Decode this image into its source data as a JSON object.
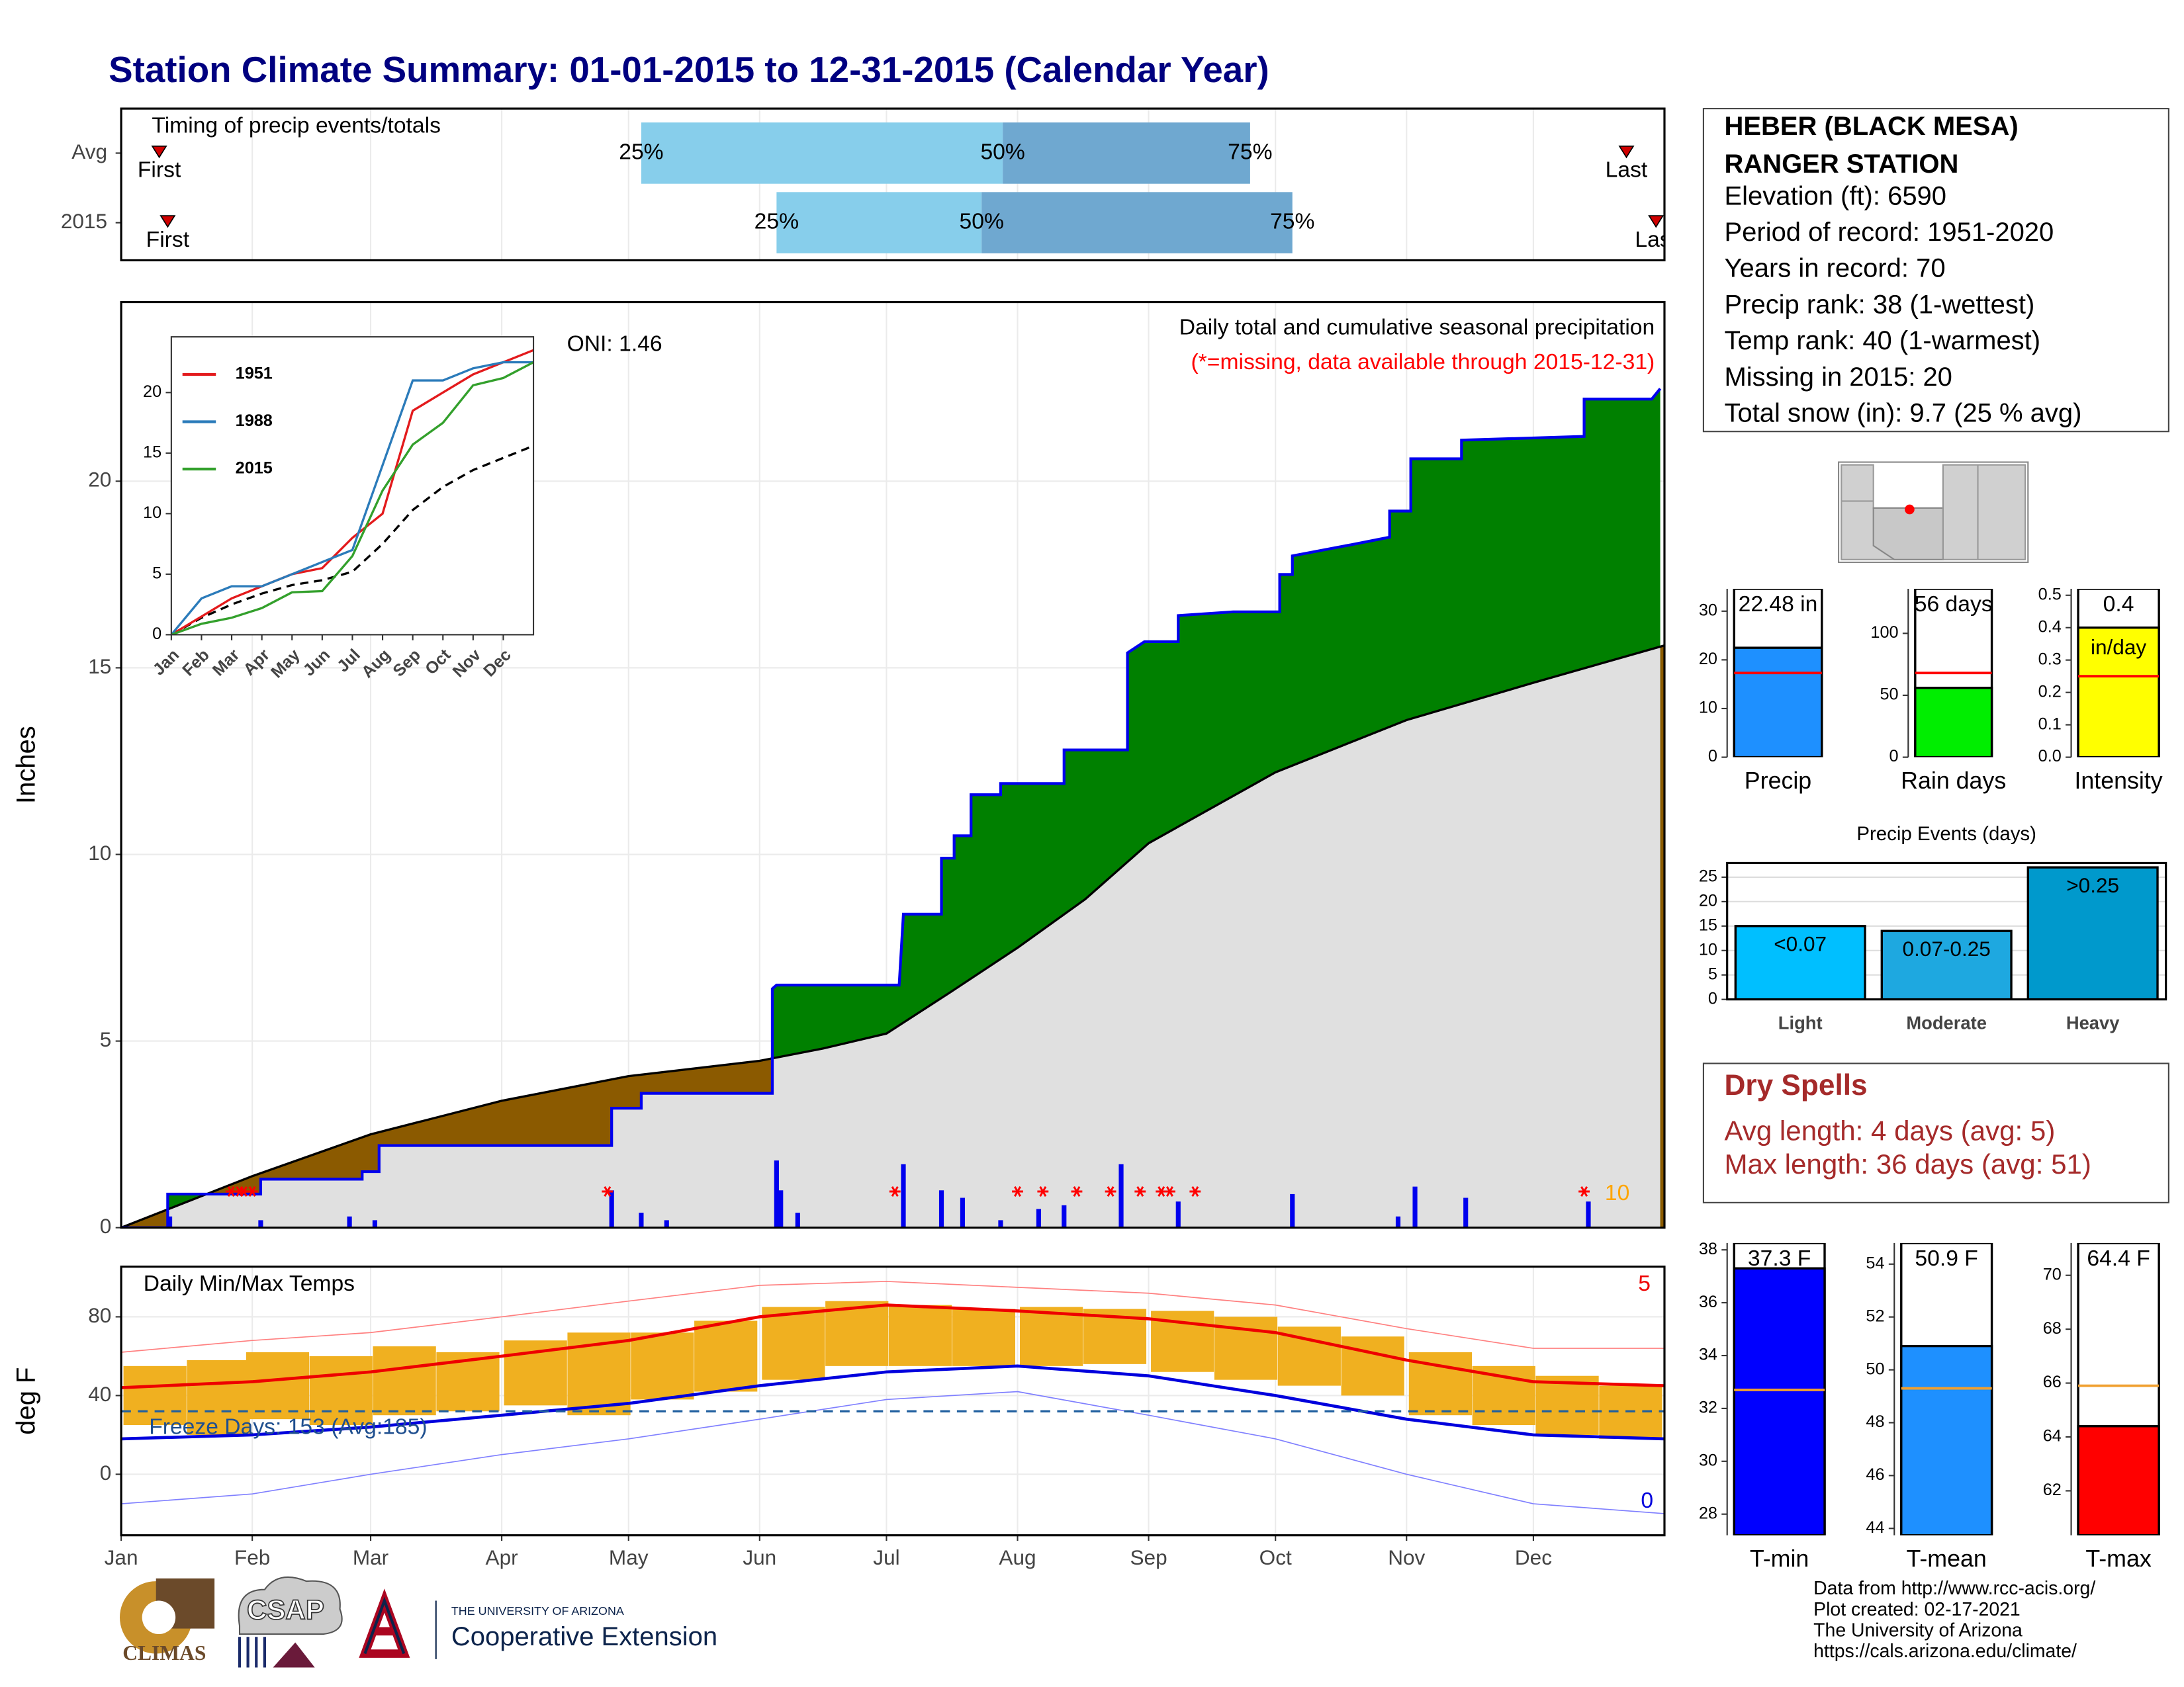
{
  "title": "Station Climate Summary: 01-01-2015 to 12-31-2015 (Calendar Year)",
  "station": {
    "name_lines": [
      "HEBER (BLACK MESA)",
      "RANGER STATION"
    ],
    "details": [
      "Elevation (ft): 6590",
      "Period of record: 1951-2020",
      "Years in record: 70",
      "Precip rank: 38 (1-wettest)",
      "Temp rank: 40 (1-warmest)",
      "Missing in 2015: 20",
      "Total snow (in): 9.7 (25 % avg)"
    ]
  },
  "dry_spells": {
    "title": "Dry Spells",
    "lines": [
      "Avg length: 4 days (avg: 5)",
      "Max length: 36 days (avg: 51)"
    ]
  },
  "footer": {
    "source_lines": [
      "Data from http://www.rcc-acis.org/",
      "Plot created: 02-17-2021",
      "The University of Arizona",
      "https://cals.arizona.edu/climate/"
    ]
  },
  "logos": {
    "climas": "CLIMAS",
    "csap": "CSAP",
    "ua_small": "THE UNIVERSITY OF ARIZONA",
    "extension": "Cooperative Extension"
  },
  "chart_data": [
    {
      "type": "timing",
      "title": "Timing of precip events/totals",
      "xlim": [
        0,
        365
      ],
      "quantile_labels": [
        "25%",
        "50%",
        "75%"
      ],
      "first_label": "First",
      "last_label": "Last",
      "colors": {
        "early": "#87ceeb",
        "late": "#6fa8d0",
        "marker": "#d00000"
      },
      "rows": [
        {
          "label": "Avg",
          "first": 9,
          "q25": 123,
          "q50": 208.5,
          "q75": 267,
          "last": 356
        },
        {
          "label": "2015",
          "first": 11,
          "q25": 155,
          "q50": 203.5,
          "q75": 277,
          "last": 363
        }
      ]
    },
    {
      "type": "area",
      "xlim": [
        0,
        365
      ],
      "ylim": [
        0,
        24.8
      ],
      "yticks": [
        0,
        5,
        10,
        15,
        20
      ],
      "grid": true,
      "y_label": "Inches",
      "oni": "ONI: 1.46",
      "subtitle": "Daily total and cumulative seasonal precipitation",
      "note": "(*=missing, data available through 2015-12-31)",
      "annotation_count": 10,
      "colors": {
        "above": "#008000",
        "below": "#8b5a00",
        "average": "#e0e0e0",
        "line": "#0000ee",
        "daily": "#0000ee",
        "missing": "#ff0000",
        "annotation": "#ffa500"
      },
      "cumulative": {
        "x": [
          0,
          11,
          11,
          33,
          33,
          57,
          57,
          61,
          61,
          116,
          116,
          123,
          123,
          154,
          154,
          155,
          184,
          185,
          194,
          194,
          197,
          197,
          201,
          201,
          208,
          208,
          223,
          223,
          238,
          238,
          242,
          250,
          250,
          263,
          274,
          274,
          277,
          277,
          291,
          300,
          300,
          305,
          305,
          317,
          317,
          346,
          346,
          362,
          364
        ],
        "values": [
          0,
          0,
          0.9,
          0.9,
          1.3,
          1.3,
          1.5,
          1.5,
          2.2,
          2.2,
          3.2,
          3.2,
          3.6,
          3.6,
          6.4,
          6.5,
          6.5,
          8.4,
          8.4,
          9.9,
          9.9,
          10.5,
          10.5,
          11.6,
          11.6,
          11.9,
          11.9,
          12.8,
          12.8,
          15.4,
          15.7,
          15.7,
          16.4,
          16.5,
          16.5,
          17.5,
          17.5,
          18.0,
          18.3,
          18.5,
          19.2,
          19.2,
          20.6,
          20.6,
          21.1,
          21.2,
          22.2,
          22.2,
          22.48
        ]
      },
      "average_cumulative": {
        "x": [
          0,
          31,
          59,
          90,
          120,
          151,
          166,
          181,
          196,
          212,
          228,
          243,
          273,
          304,
          334,
          365
        ],
        "values": [
          0,
          1.38,
          2.5,
          3.4,
          4.06,
          4.47,
          4.8,
          5.2,
          6.3,
          7.5,
          8.8,
          10.3,
          12.2,
          13.6,
          14.6,
          15.6
        ]
      },
      "daily": {
        "x": [
          11.5,
          33,
          54,
          60,
          116,
          123,
          129,
          155,
          156,
          160,
          185,
          194,
          199,
          208,
          217,
          223,
          236.5,
          250,
          277,
          302,
          306,
          318,
          347
        ],
        "values": [
          0.3,
          0.2,
          0.3,
          0.2,
          1.0,
          0.4,
          0.2,
          1.8,
          1.0,
          0.4,
          1.7,
          1.0,
          0.8,
          0.2,
          0.5,
          0.6,
          1.7,
          0.7,
          0.9,
          0.3,
          1.1,
          0.8,
          0.7
        ]
      },
      "missing_days": [
        26,
        28,
        29,
        31,
        115,
        183,
        212,
        218,
        226,
        234,
        241,
        246,
        248,
        254,
        346
      ]
    },
    {
      "type": "line",
      "xlim": [
        0,
        12
      ],
      "ylim": [
        0,
        24.6
      ],
      "yticks": [
        0,
        5,
        10,
        15,
        20
      ],
      "x": [
        0,
        1,
        2,
        3,
        4,
        5,
        6,
        7,
        8,
        9,
        10,
        11,
        12
      ],
      "xticks": [
        {
          "value": 0,
          "label": "Jan"
        },
        {
          "value": 1,
          "label": "Feb"
        },
        {
          "value": 2,
          "label": "Mar"
        },
        {
          "value": 3,
          "label": "Apr"
        },
        {
          "value": 4,
          "label": "May"
        },
        {
          "value": 5,
          "label": "Jun"
        },
        {
          "value": 6,
          "label": "Jul"
        },
        {
          "value": 7,
          "label": "Aug"
        },
        {
          "value": 8,
          "label": "Sep"
        },
        {
          "value": 9,
          "label": "Oct"
        },
        {
          "value": 10,
          "label": "Nov"
        },
        {
          "value": 11,
          "label": "Dec"
        }
      ],
      "series": [
        {
          "name": "1951",
          "color": "#e31a1c",
          "values": [
            0,
            1.5,
            3,
            4,
            5,
            5.5,
            8,
            10,
            18.5,
            20,
            21.5,
            22.5,
            23.5
          ]
        },
        {
          "name": "1988",
          "color": "#2b7bba",
          "values": [
            0,
            3,
            4,
            4,
            5,
            6,
            7,
            14,
            21,
            21,
            22,
            22.5,
            22.5
          ]
        },
        {
          "name": "2015",
          "color": "#33a02c",
          "values": [
            0,
            0.9,
            1.4,
            2.2,
            3.5,
            3.6,
            6.5,
            11.9,
            15.7,
            17.5,
            20.6,
            21.2,
            22.5
          ]
        }
      ],
      "average": {
        "color": "#000000",
        "values": [
          0,
          1.4,
          2.5,
          3.4,
          4.1,
          4.5,
          5.2,
          7.5,
          10.3,
          12.2,
          13.6,
          14.6,
          15.6
        ]
      }
    },
    {
      "type": "temperature",
      "title": "Daily Min/Max Temps",
      "y_label": "deg F",
      "xlim": [
        0,
        365
      ],
      "ylim": [
        -31,
        105.5
      ],
      "yticks": [
        0,
        40,
        80
      ],
      "grid": true,
      "xticks": [
        {
          "value": 0,
          "label": "Jan"
        },
        {
          "value": 31,
          "label": "Feb"
        },
        {
          "value": 59,
          "label": "Mar"
        },
        {
          "value": 90,
          "label": "Apr"
        },
        {
          "value": 120,
          "label": "May"
        },
        {
          "value": 151,
          "label": "Jun"
        },
        {
          "value": 181,
          "label": "Jul"
        },
        {
          "value": 212,
          "label": "Aug"
        },
        {
          "value": 243,
          "label": "Sep"
        },
        {
          "value": 273,
          "label": "Oct"
        },
        {
          "value": 304,
          "label": "Nov"
        },
        {
          "value": 334,
          "label": "Dec"
        }
      ],
      "freeze_line": 32,
      "freeze_text": "Freeze Days: 153 (Avg:185)",
      "record_highs": 5,
      "record_lows": 0,
      "x": [
        0,
        31,
        59,
        90,
        120,
        151,
        181,
        212,
        243,
        273,
        304,
        334,
        365
      ],
      "average_max": {
        "color": "#ee0000",
        "values": [
          44,
          47,
          52,
          60,
          68,
          80,
          86,
          83,
          79,
          72,
          58,
          47,
          45
        ]
      },
      "average_min": {
        "color": "#0000dd",
        "values": [
          18,
          20,
          24,
          30,
          36,
          45,
          52,
          55,
          50,
          40,
          28,
          20,
          18
        ]
      },
      "record_max": {
        "color": "#ff8080",
        "values": [
          62,
          68,
          72,
          80,
          88,
          96,
          98,
          95,
          92,
          86,
          74,
          64,
          64
        ]
      },
      "record_min": {
        "color": "#8080ff",
        "values": [
          -15,
          -10,
          0,
          10,
          18,
          28,
          38,
          42,
          30,
          18,
          0,
          -15,
          -20
        ]
      },
      "observed": {
        "color": "#f0b020",
        "x": [
          8,
          23,
          37,
          52,
          67,
          82,
          98,
          113,
          128,
          143,
          159,
          174,
          189,
          204,
          220,
          235,
          251,
          266,
          281,
          296,
          312,
          327,
          342,
          357
        ],
        "min": [
          25,
          20,
          28,
          25,
          30,
          32,
          35,
          30,
          38,
          42,
          48,
          55,
          55,
          55,
          55,
          56,
          52,
          48,
          45,
          40,
          30,
          25,
          20,
          18
        ],
        "max": [
          55,
          58,
          62,
          60,
          65,
          62,
          68,
          72,
          72,
          78,
          85,
          88,
          86,
          84,
          85,
          84,
          83,
          80,
          75,
          70,
          62,
          55,
          50,
          45
        ]
      }
    },
    {
      "type": "bar",
      "categories": [
        "Precip"
      ],
      "values": [
        22.48
      ],
      "value_labels": [
        "22.48 in"
      ],
      "average": 17.3,
      "color": "#1e90ff",
      "average_color": "#ff0000",
      "ylim": [
        0,
        34.6
      ],
      "yticks": [
        0,
        10,
        20,
        30
      ]
    },
    {
      "type": "bar",
      "categories": [
        "Rain days"
      ],
      "values": [
        56
      ],
      "value_labels": [
        "56 days"
      ],
      "average": 68,
      "color": "#00ee00",
      "average_color": "#ff0000",
      "ylim": [
        0,
        136
      ],
      "yticks": [
        0,
        50,
        100
      ]
    },
    {
      "type": "bar",
      "categories": [
        "Intensity"
      ],
      "values": [
        0.4
      ],
      "value_labels": [
        "0.4"
      ],
      "unit": "in/day",
      "average": 0.25,
      "color": "#ffff00",
      "average_color": "#ff0000",
      "ylim": [
        0,
        0.52
      ],
      "yticks": [
        {
          "value": 0,
          "label": "0.0"
        },
        0.1,
        0.2,
        0.3,
        0.4,
        0.5
      ]
    },
    {
      "type": "bar",
      "title": "Precip Events (days)",
      "categories": [
        "Light",
        "Moderate",
        "Heavy"
      ],
      "values": [
        15,
        14,
        27
      ],
      "ranges": [
        "<0.07",
        "0.07-0.25",
        ">0.25"
      ],
      "colors": [
        "#00bfff",
        "#1ea8e0",
        "#0099cc"
      ],
      "ylim": [
        0,
        27.9
      ],
      "yticks": [
        0,
        5,
        10,
        15,
        20,
        25
      ],
      "grid": true
    },
    {
      "type": "bar",
      "categories": [
        "T-min"
      ],
      "values": [
        37.3
      ],
      "value_labels": [
        "37.3 F"
      ],
      "average": 32.7,
      "color": "#0000ff",
      "average_color": "#f0a030",
      "ylim": [
        27.2,
        38.26
      ],
      "yticks": [
        28,
        30,
        32,
        34,
        36,
        38
      ]
    },
    {
      "type": "bar",
      "categories": [
        "T-mean"
      ],
      "values": [
        50.9
      ],
      "value_labels": [
        "50.9 F"
      ],
      "average": 49.3,
      "color": "#1e90ff",
      "average_color": "#f0a030",
      "ylim": [
        43.74,
        54.8
      ],
      "yticks": [
        44,
        46,
        48,
        50,
        52,
        54
      ]
    },
    {
      "type": "bar",
      "categories": [
        "T-max"
      ],
      "values": [
        64.4
      ],
      "value_labels": [
        "64.4 F"
      ],
      "average": 65.9,
      "color": "#ff0000",
      "average_color": "#f0a030",
      "ylim": [
        60.35,
        71.2
      ],
      "yticks": [
        62,
        64,
        66,
        68,
        70
      ]
    }
  ]
}
